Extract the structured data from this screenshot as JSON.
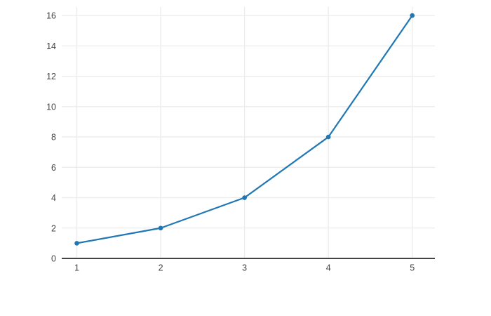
{
  "figure": {
    "background": "#ffffff"
  },
  "chart_data": {
    "type": "line",
    "x": [
      1,
      2,
      3,
      4,
      5
    ],
    "y": [
      1,
      2,
      4,
      8,
      16
    ],
    "title": "",
    "xlabel": "",
    "ylabel": "",
    "x_ticks": [
      1,
      2,
      3,
      4,
      5
    ],
    "y_ticks": [
      0,
      2,
      4,
      6,
      8,
      10,
      12,
      14,
      16
    ],
    "xlim": [
      0.82,
      5.27
    ],
    "ylim": [
      0,
      16.56
    ],
    "grid": true,
    "legend": false,
    "marker": "circle",
    "colors": {
      "line": "#1f77b4",
      "marker": "#1f77b4",
      "grid": "#ebebeb",
      "axis_line": "#444444",
      "tick_label": "#444444"
    }
  }
}
